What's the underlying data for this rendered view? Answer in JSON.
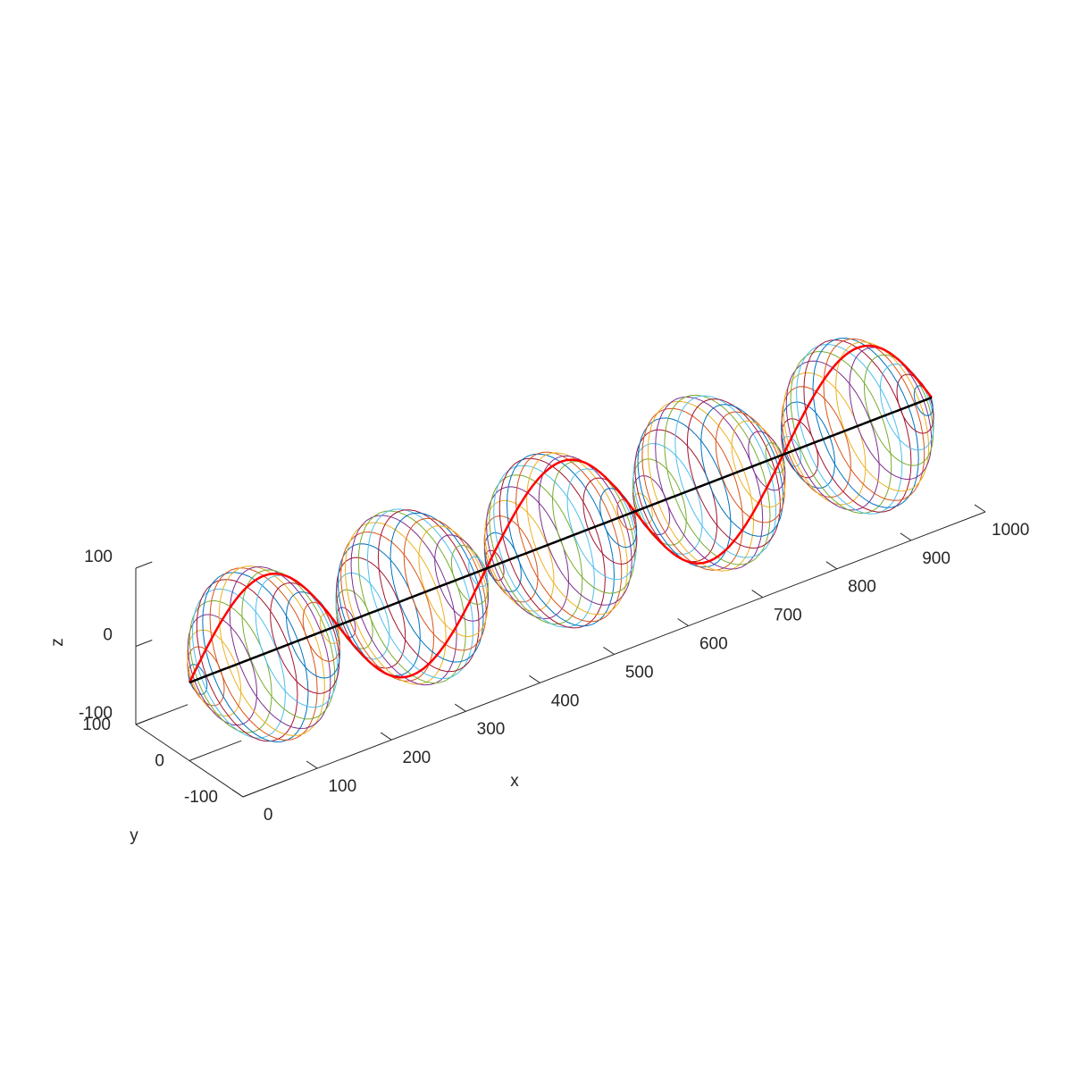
{
  "chart_data": {
    "type": "line",
    "title": "",
    "xlabel": "x",
    "ylabel": "y",
    "zlabel": "z",
    "xlim": [
      0,
      1000
    ],
    "ylim": [
      -100,
      100
    ],
    "zlim": [
      -100,
      100
    ],
    "x_ticks": [
      "0",
      "100",
      "200",
      "300",
      "400",
      "500",
      "600",
      "700",
      "800",
      "900",
      "1000"
    ],
    "y_ticks": [
      "-100",
      "0",
      "100"
    ],
    "z_ticks": [
      "-100",
      "0",
      "100"
    ],
    "wave": {
      "wavelength": 400,
      "amplitude": 100,
      "rings_per_lobe": 18,
      "lobes": 5
    },
    "series": [
      {
        "name": "",
        "color": "#ff0000",
        "x_start": 0,
        "x_end": 1000,
        "kind": "sine-wave"
      },
      {
        "name": "",
        "color": "#000000",
        "x_start": 0,
        "x_end": 1000,
        "kind": "axis-line"
      }
    ],
    "ring_colors": [
      "#0072BD",
      "#D95319",
      "#EDB120",
      "#7E2F8E",
      "#77AC30",
      "#4DBEEE",
      "#A2142F"
    ],
    "grid": false,
    "legend": "none"
  }
}
